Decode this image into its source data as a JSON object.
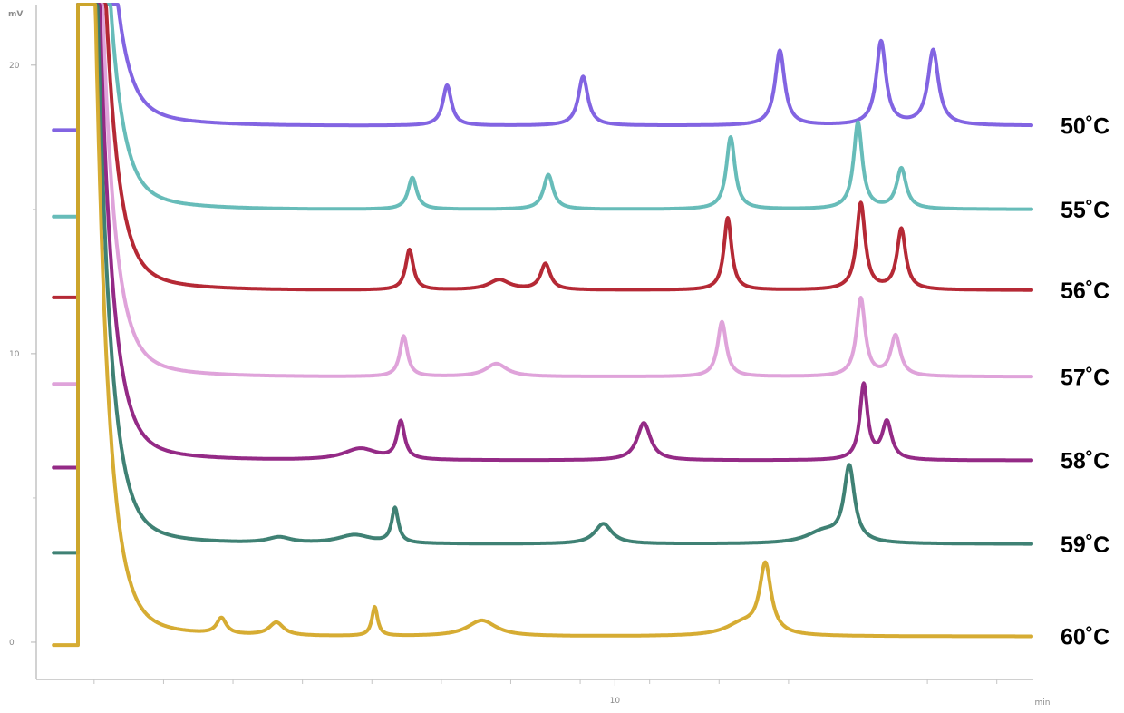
{
  "chart_data": {
    "type": "line",
    "title": "",
    "xlabel": "min",
    "ylabel": "mV",
    "xlim": [
      0,
      17.2
    ],
    "ylim": [
      -0.85,
      22.1
    ],
    "x_ticks": [
      {
        "value": 10,
        "label": "10"
      }
    ],
    "x_minor_ticks": [
      1,
      2.2,
      3.4,
      4.6,
      5.8,
      7,
      8.2,
      9.4,
      10.6,
      11.8,
      13,
      14.2,
      15.4,
      16.6
    ],
    "y_ticks": [
      {
        "value": 0,
        "label": "0"
      },
      {
        "value": 10,
        "label": "10"
      },
      {
        "value": 20,
        "label": "20"
      }
    ],
    "y_minor_ticks": [
      5,
      15
    ],
    "y_axis_unit_label": "mV",
    "x_axis_unit_label": "min",
    "grid": false,
    "legend": "inline labels at right end of each trace",
    "solvent_front": {
      "onset": 0.45,
      "rise": 0.72,
      "peak_x": 0.88,
      "decay_width": 0.22
    },
    "series": [
      {
        "name": "50˚C",
        "color": "#7b5ce0",
        "offset": 18.0,
        "baseline": 17.9,
        "start_baseline": 17.75,
        "peaks": [
          [
            7.1,
            1.4,
            0.09
          ],
          [
            9.45,
            1.7,
            0.1
          ],
          [
            12.85,
            2.6,
            0.1
          ],
          [
            14.6,
            2.9,
            0.1
          ],
          [
            15.5,
            2.6,
            0.11
          ]
        ]
      },
      {
        "name": "55˚C",
        "color": "#5fb8b5",
        "offset": 15.1,
        "baseline": 15.0,
        "start_baseline": 14.75,
        "peaks": [
          [
            6.5,
            1.1,
            0.09
          ],
          [
            8.85,
            1.2,
            0.1
          ],
          [
            12.0,
            2.5,
            0.09
          ],
          [
            14.2,
            3.0,
            0.09
          ],
          [
            14.95,
            1.4,
            0.1
          ]
        ]
      },
      {
        "name": "56˚C",
        "color": "#b11e2a",
        "offset": 12.3,
        "baseline": 12.2,
        "start_baseline": 11.95,
        "peaks": [
          [
            6.45,
            1.4,
            0.08
          ],
          [
            8.0,
            0.35,
            0.22
          ],
          [
            8.8,
            0.9,
            0.1
          ],
          [
            11.95,
            2.5,
            0.08
          ],
          [
            14.25,
            3.0,
            0.09
          ],
          [
            14.95,
            2.1,
            0.09
          ]
        ]
      },
      {
        "name": "57˚C",
        "color": "#dd9ed8",
        "offset": 9.3,
        "baseline": 9.2,
        "start_baseline": 8.95,
        "peaks": [
          [
            6.35,
            1.4,
            0.08
          ],
          [
            7.95,
            0.45,
            0.22
          ],
          [
            11.85,
            1.9,
            0.09
          ],
          [
            14.25,
            2.7,
            0.09
          ],
          [
            14.85,
            1.4,
            0.1
          ]
        ]
      },
      {
        "name": "58˚C",
        "color": "#8e1f7f",
        "offset": 6.4,
        "baseline": 6.3,
        "start_baseline": 6.05,
        "peaks": [
          [
            5.6,
            0.4,
            0.35
          ],
          [
            6.3,
            1.3,
            0.08
          ],
          [
            10.5,
            1.3,
            0.14
          ],
          [
            14.3,
            2.6,
            0.08
          ],
          [
            14.7,
            1.3,
            0.1
          ]
        ]
      },
      {
        "name": "59˚C",
        "color": "#357a6d",
        "offset": 3.5,
        "baseline": 3.4,
        "start_baseline": 3.1,
        "peaks": [
          [
            4.2,
            0.2,
            0.25
          ],
          [
            5.5,
            0.3,
            0.35
          ],
          [
            6.2,
            1.2,
            0.07
          ],
          [
            9.8,
            0.7,
            0.18
          ],
          [
            13.6,
            0.4,
            0.35
          ],
          [
            14.05,
            2.6,
            0.11
          ]
        ]
      },
      {
        "name": "60˚C",
        "color": "#d4a828",
        "offset": 0.3,
        "baseline": 0.2,
        "start_baseline": -0.1,
        "peaks": [
          [
            3.2,
            0.55,
            0.1
          ],
          [
            4.15,
            0.45,
            0.15
          ],
          [
            5.85,
            1.0,
            0.06
          ],
          [
            7.7,
            0.55,
            0.3
          ],
          [
            12.2,
            0.4,
            0.35
          ],
          [
            12.6,
            2.4,
            0.12
          ]
        ]
      }
    ]
  }
}
